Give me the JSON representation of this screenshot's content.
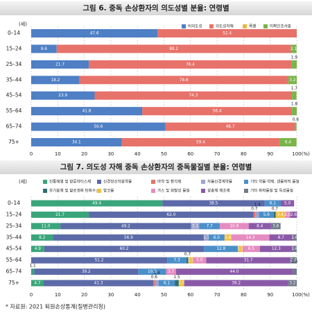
{
  "chart_data": [
    {
      "type": "stacked-barh",
      "title": "그림 6. 중독 손상환자의 의도성별 분율: 연령별",
      "y_label": "(세)",
      "categories": [
        "0–14",
        "15–24",
        "25–34",
        "35–44",
        "45–54",
        "55–64",
        "65–74",
        "75+"
      ],
      "series": [
        {
          "name": "비의도성",
          "color": "#4f7fc4",
          "values": [
            47.6,
            9.6,
            21.7,
            18.2,
            23.9,
            41.8,
            50.6,
            34.1
          ]
        },
        {
          "name": "의도성자해",
          "color": "#e7726a",
          "values": [
            52.4,
            88.2,
            76.4,
            78.6,
            74.3,
            56.4,
            48.7,
            59.4
          ]
        },
        {
          "name": "폭행",
          "color": "#f0b53c",
          "values": [
            null,
            null,
            null,
            null,
            null,
            null,
            null,
            null
          ]
        },
        {
          "name": "미확인조사중",
          "color": "#79b54a",
          "values": [
            null,
            2.1,
            1.9,
            3.2,
            1.7,
            1.8,
            0.6,
            6.4
          ]
        }
      ],
      "xlim": [
        0,
        100
      ],
      "xticks": [
        0,
        10,
        20,
        30,
        40,
        50,
        60,
        70,
        80,
        90,
        {
          "value": 100,
          "label": "100(%)"
        }
      ],
      "grid": true
    },
    {
      "type": "stacked-barh",
      "title": "그림 7. 의도성 자해 중독 손상환자의 중독물질별 분율: 연령별",
      "y_label": "(세)",
      "categories": [
        "0–14",
        "15–24",
        "25–34",
        "35–44",
        "45–54",
        "55–64",
        "65–74",
        "75+"
      ],
      "series": [
        {
          "name": "진통해열 및 항류마티스제",
          "color": "#3aa57a",
          "values": [
            49.4,
            21.7,
            11.0,
            8.2,
            4.9,
            null,
            1.1,
            4.7
          ],
          "value_labels": [
            "49.4",
            "21.7",
            "11.0",
            "8.2",
            "4.9",
            null,
            "1.1",
            "4.7"
          ]
        },
        {
          "name": "신경정신작용약물",
          "color": "#5c6aa8",
          "values": [
            38.5,
            62.0,
            49.2,
            56.9,
            60.2,
            51.2,
            39.2,
            41.3
          ],
          "value_labels": [
            "38.5",
            "62.0",
            "49.2",
            "56.9",
            "60.2",
            "51.2",
            "39.2",
            "41.3"
          ]
        },
        {
          "name": "마약 및 환각제",
          "color": "#e5736b",
          "values": [
            null,
            0.7,
            null,
            null,
            null,
            null,
            null,
            0.6
          ]
        },
        {
          "name": "자율신경계약물",
          "color": "#9ea3cc",
          "values": [
            null,
            1.4,
            3.1,
            1.7,
            null,
            null,
            null,
            1.4
          ]
        },
        {
          "name": "기타 약물·약제, 생물학적 물질",
          "color": "#4b8fc9",
          "values": [
            6.1,
            5.6,
            7.7,
            6.0,
            12.8,
            7.3,
            10.5,
            6.1
          ],
          "value_labels": [
            "6.1",
            "5.6",
            "7.7",
            "6.0",
            "12.8",
            "7.3",
            "10.5",
            "6.1"
          ]
        },
        {
          "name": "유기용제 및 할로겐화 탄화수소",
          "color": "#2f6f70",
          "values": [
            null,
            0.7,
            null,
            null,
            null,
            0.7,
            null,
            1.5
          ]
        },
        {
          "name": "알코올",
          "color": "#f0c040",
          "values": [
            null,
            3.4,
            null,
            2.6,
            1.7,
            1.7,
            null,
            2.0
          ],
          "value_labels": [
            null,
            "3.4",
            null,
            "2.6",
            "1.7",
            "1.7",
            null,
            "2.0"
          ]
        },
        {
          "name": "가스 및 휘발성 물질",
          "color": "#e58cc0",
          "values": [
            null,
            2.0,
            10.9,
            14.3,
            6.5,
            5.0,
            3.7,
            null
          ],
          "value_labels": [
            null,
            "2.0",
            "10.9",
            "14.3",
            "6.5",
            "5.0",
            "3.7",
            null
          ]
        },
        {
          "name": "살충제 제초제",
          "color": "#8a5aa8",
          "values": [
            5.0,
            2.6,
            8.4,
            8.7,
            12.3,
            31.7,
            44.0,
            39.2
          ],
          "value_labels": [
            "5.0",
            "2.6",
            "8.4",
            "8.7",
            "12.3",
            "31.7",
            "44.0",
            "39.2"
          ]
        },
        {
          "name": "기타 화학물질 및 독성물질",
          "color": "#6f7a8a",
          "values": [
            null,
            null,
            3.6,
            1.6,
            1.6,
            2.4,
            1.5,
            3.2
          ]
        }
      ],
      "xlim": [
        0,
        100
      ],
      "xticks": [
        0,
        10,
        20,
        30,
        40,
        50,
        60,
        70,
        80,
        90,
        {
          "value": 100,
          "label": "100(%)"
        }
      ],
      "grid": true
    }
  ],
  "source": "* 자료원: 2021 퇴원손상통계(질병관리청)"
}
